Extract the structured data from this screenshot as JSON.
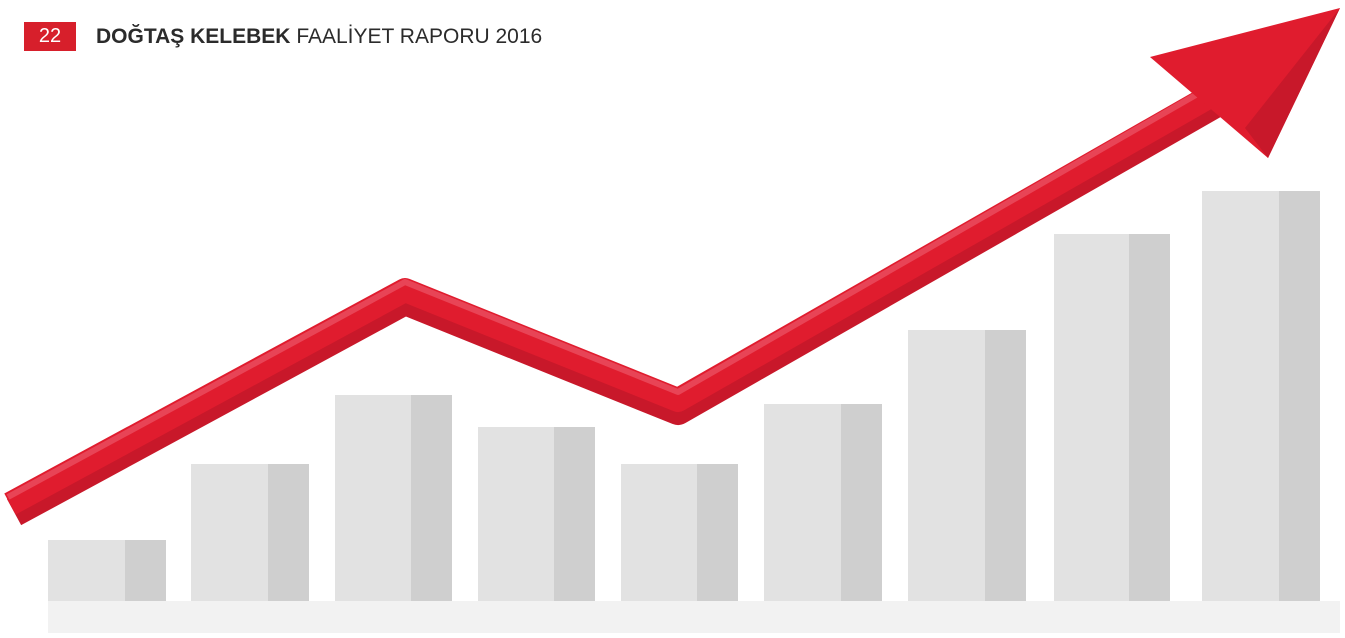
{
  "header": {
    "page_number": "22",
    "brand": "DOĞTAŞ KELEBEK",
    "title": "FAALİYET RAPORU 2016"
  }
}
